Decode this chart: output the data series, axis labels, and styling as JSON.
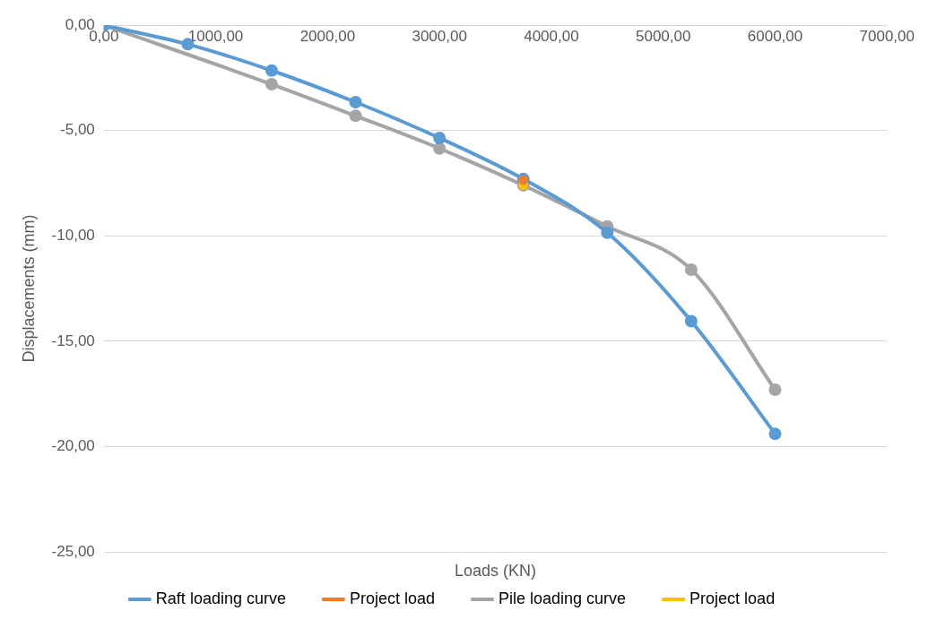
{
  "chart_data": {
    "type": "line",
    "xlabel": "Loads (KN)",
    "ylabel": "Displacements (mm)",
    "xlim": [
      0,
      7000
    ],
    "ylim": [
      -25,
      0
    ],
    "xticks": [
      {
        "value": 0,
        "label": "0,00"
      },
      {
        "value": 1000,
        "label": "1000,00"
      },
      {
        "value": 2000,
        "label": "2000,00"
      },
      {
        "value": 3000,
        "label": "3000,00"
      },
      {
        "value": 4000,
        "label": "4000,00"
      },
      {
        "value": 5000,
        "label": "5000,00"
      },
      {
        "value": 6000,
        "label": "6000,00"
      },
      {
        "value": 7000,
        "label": "7000,00"
      }
    ],
    "yticks": [
      {
        "value": -25,
        "label": "-25,00"
      },
      {
        "value": -20,
        "label": "-20,00"
      },
      {
        "value": -15,
        "label": "-15,00"
      },
      {
        "value": -10,
        "label": "-10,00"
      },
      {
        "value": -5,
        "label": "-5,00"
      },
      {
        "value": 0,
        "label": "0,00"
      }
    ],
    "grid": "y",
    "legend": "bottom",
    "marker": "circle",
    "series": [
      {
        "name": "Raft loading curve",
        "color": "#5b9bd5",
        "x": [
          0,
          750,
          1500,
          2250,
          3000,
          3750,
          4500,
          5250,
          6000
        ],
        "values": [
          0,
          -0.9,
          -2.15,
          -3.65,
          -5.35,
          -7.3,
          -9.85,
          -14.05,
          -19.4
        ]
      },
      {
        "name": "Project load",
        "type": "scatter",
        "color": "#ed7d31",
        "x": [
          3750
        ],
        "values": [
          -7.35
        ]
      },
      {
        "name": "Pile loading curve",
        "color": "#a5a5a5",
        "x": [
          0,
          1500,
          2250,
          3000,
          3750,
          4500,
          5250,
          6000
        ],
        "values": [
          0,
          -2.8,
          -4.3,
          -5.85,
          -7.6,
          -9.55,
          -11.6,
          -17.3
        ]
      },
      {
        "name": "Project load",
        "type": "scatter",
        "color": "#ffc000",
        "x": [
          3750
        ],
        "values": [
          -7.6
        ]
      }
    ]
  }
}
